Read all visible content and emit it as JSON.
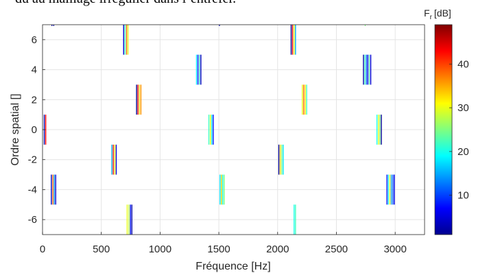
{
  "page": {
    "top_text": "dû au maillage irrégulier dans l’entrefer."
  },
  "chart_data": {
    "type": "spectrogram-lines",
    "title": "",
    "xlabel": "Fréquence [Hz]",
    "ylabel": "Ordre spatial []",
    "xlim": [
      0,
      3250
    ],
    "ylim": [
      -7,
      7
    ],
    "xticks": [
      0,
      500,
      1000,
      1500,
      2000,
      2500,
      3000
    ],
    "yticks": [
      -6,
      -4,
      -2,
      0,
      2,
      4,
      6
    ],
    "grid": true,
    "colorbar": {
      "label_main": "F",
      "label_sub": "r",
      "label_unit": "[dB]",
      "range": [
        1,
        49
      ],
      "ticks": [
        10,
        20,
        30,
        40
      ],
      "colormap": "jet"
    },
    "groups": [
      {
        "order": -6,
        "lines": [
          {
            "x": 720,
            "v": 30
          },
          {
            "x": 735,
            "v": 28
          },
          {
            "x": 748,
            "v": 8
          },
          {
            "x": 760,
            "v": 3
          }
        ]
      },
      {
        "order": -6,
        "lines": [
          {
            "x": 2140,
            "v": 20
          },
          {
            "x": 2152,
            "v": 22
          }
        ]
      },
      {
        "order": -4,
        "lines": [
          {
            "x": 75,
            "v": 4
          },
          {
            "x": 88,
            "v": 38
          },
          {
            "x": 100,
            "v": 14
          },
          {
            "x": 112,
            "v": 5
          }
        ]
      },
      {
        "order": -4,
        "lines": [
          {
            "x": 1510,
            "v": 18
          },
          {
            "x": 1522,
            "v": 33
          },
          {
            "x": 1533,
            "v": 20
          },
          {
            "x": 1545,
            "v": 25
          }
        ]
      },
      {
        "order": -4,
        "lines": [
          {
            "x": 2930,
            "v": 8
          },
          {
            "x": 2942,
            "v": 20
          },
          {
            "x": 2955,
            "v": 30
          },
          {
            "x": 2967,
            "v": 14
          },
          {
            "x": 2980,
            "v": 11
          },
          {
            "x": 2992,
            "v": 6
          }
        ]
      },
      {
        "order": -2,
        "lines": [
          {
            "x": 590,
            "v": 15
          },
          {
            "x": 602,
            "v": 42
          },
          {
            "x": 615,
            "v": 30
          },
          {
            "x": 627,
            "v": 5
          }
        ]
      },
      {
        "order": -2,
        "lines": [
          {
            "x": 2010,
            "v": 2
          },
          {
            "x": 2022,
            "v": 33
          },
          {
            "x": 2035,
            "v": 25
          },
          {
            "x": 2047,
            "v": 18
          }
        ]
      },
      {
        "order": 0,
        "lines": [
          {
            "x": 15,
            "v": 3
          },
          {
            "x": 27,
            "v": 43
          }
        ]
      },
      {
        "order": 0,
        "lines": [
          {
            "x": 1415,
            "v": 22
          },
          {
            "x": 1428,
            "v": 30
          },
          {
            "x": 1440,
            "v": 18
          },
          {
            "x": 1452,
            "v": 8
          }
        ]
      },
      {
        "order": 0,
        "lines": [
          {
            "x": 2845,
            "v": 20
          },
          {
            "x": 2858,
            "v": 30
          },
          {
            "x": 2870,
            "v": 25
          },
          {
            "x": 2882,
            "v": 2
          }
        ]
      },
      {
        "order": 2,
        "lines": [
          {
            "x": 800,
            "v": 2
          },
          {
            "x": 812,
            "v": 44
          },
          {
            "x": 825,
            "v": 30
          },
          {
            "x": 837,
            "v": 36
          }
        ]
      },
      {
        "order": 2,
        "lines": [
          {
            "x": 2210,
            "v": 30
          },
          {
            "x": 2222,
            "v": 38
          },
          {
            "x": 2235,
            "v": 32
          },
          {
            "x": 2247,
            "v": 22
          }
        ]
      },
      {
        "order": 4,
        "lines": [
          {
            "x": 1310,
            "v": 18
          },
          {
            "x": 1322,
            "v": 8
          },
          {
            "x": 1335,
            "v": 22
          },
          {
            "x": 1347,
            "v": 4
          }
        ]
      },
      {
        "order": 4,
        "lines": [
          {
            "x": 2730,
            "v": 3
          },
          {
            "x": 2742,
            "v": 22
          },
          {
            "x": 2755,
            "v": 12
          },
          {
            "x": 2767,
            "v": 6
          },
          {
            "x": 2780,
            "v": 23
          },
          {
            "x": 2792,
            "v": 5
          }
        ]
      },
      {
        "order": 6,
        "lines": [
          {
            "x": 690,
            "v": 5
          },
          {
            "x": 702,
            "v": 22
          },
          {
            "x": 715,
            "v": 38
          },
          {
            "x": 727,
            "v": 30
          }
        ]
      },
      {
        "order": 6,
        "lines": [
          {
            "x": 2115,
            "v": 2
          },
          {
            "x": 2127,
            "v": 44
          },
          {
            "x": 2140,
            "v": 30
          },
          {
            "x": 2152,
            "v": 15
          }
        ]
      }
    ],
    "edge_marks": [
      {
        "x": 80,
        "v": 3
      },
      {
        "x": 95,
        "v": 3
      },
      {
        "x": 1505,
        "v": 3
      },
      {
        "x": 2745,
        "v": 25
      }
    ]
  }
}
